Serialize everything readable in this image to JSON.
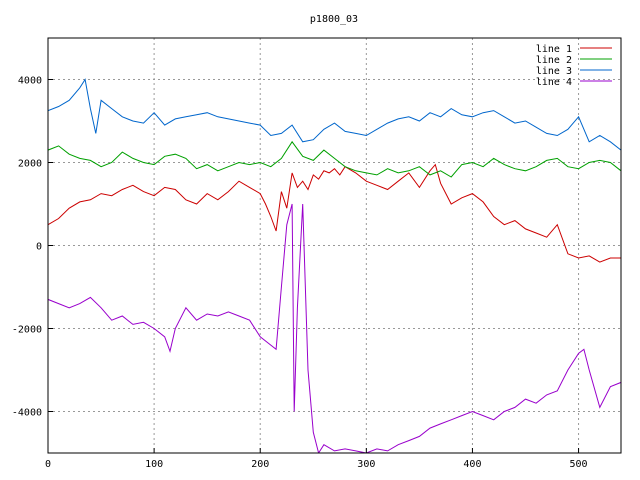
{
  "chart_data": {
    "type": "line",
    "title": "p1800_03",
    "xlabel": "",
    "ylabel": "",
    "xlim": [
      0,
      540
    ],
    "ylim": [
      -5000,
      5000
    ],
    "xticks": [
      0,
      100,
      200,
      300,
      400,
      500
    ],
    "yticks": [
      -4000,
      -2000,
      0,
      2000,
      4000
    ],
    "grid": true,
    "legend_position": "top-right",
    "series": [
      {
        "name": "line 1",
        "color": "#cc0000",
        "x": [
          0,
          10,
          20,
          30,
          40,
          50,
          60,
          70,
          80,
          90,
          100,
          110,
          120,
          130,
          140,
          150,
          160,
          170,
          180,
          190,
          200,
          205,
          210,
          215,
          220,
          225,
          230,
          235,
          240,
          245,
          250,
          255,
          260,
          265,
          270,
          275,
          280,
          290,
          300,
          310,
          320,
          330,
          340,
          350,
          360,
          365,
          370,
          380,
          390,
          400,
          410,
          420,
          430,
          440,
          450,
          460,
          470,
          480,
          490,
          500,
          510,
          520,
          530,
          540
        ],
        "y": [
          500,
          650,
          900,
          1050,
          1100,
          1250,
          1200,
          1350,
          1450,
          1300,
          1200,
          1400,
          1350,
          1100,
          1000,
          1250,
          1100,
          1300,
          1550,
          1400,
          1250,
          1000,
          700,
          350,
          1300,
          900,
          1750,
          1400,
          1550,
          1350,
          1700,
          1600,
          1800,
          1750,
          1850,
          1700,
          1900,
          1750,
          1550,
          1450,
          1350,
          1550,
          1750,
          1400,
          1800,
          1950,
          1500,
          1000,
          1150,
          1250,
          1050,
          700,
          500,
          600,
          400,
          300,
          200,
          500,
          -200,
          -300,
          -250,
          -400,
          -300,
          -300
        ]
      },
      {
        "name": "line 2",
        "color": "#00a000",
        "x": [
          0,
          10,
          20,
          30,
          40,
          50,
          60,
          70,
          80,
          90,
          100,
          110,
          120,
          130,
          140,
          150,
          160,
          170,
          180,
          190,
          200,
          210,
          220,
          230,
          240,
          250,
          260,
          270,
          280,
          290,
          300,
          310,
          320,
          330,
          340,
          350,
          360,
          370,
          380,
          390,
          400,
          410,
          420,
          430,
          440,
          450,
          460,
          470,
          480,
          490,
          500,
          510,
          520,
          530,
          540
        ],
        "y": [
          2300,
          2400,
          2200,
          2100,
          2050,
          1900,
          2000,
          2250,
          2100,
          2000,
          1950,
          2150,
          2200,
          2100,
          1850,
          1950,
          1800,
          1900,
          2000,
          1950,
          2000,
          1900,
          2100,
          2500,
          2150,
          2050,
          2300,
          2100,
          1900,
          1800,
          1750,
          1700,
          1850,
          1750,
          1800,
          1900,
          1700,
          1800,
          1650,
          1950,
          2000,
          1900,
          2100,
          1950,
          1850,
          1800,
          1900,
          2050,
          2100,
          1900,
          1850,
          2000,
          2050,
          2000,
          1800
        ]
      },
      {
        "name": "line 3",
        "color": "#0066cc",
        "x": [
          0,
          10,
          20,
          30,
          35,
          40,
          45,
          50,
          60,
          70,
          80,
          90,
          100,
          110,
          120,
          130,
          140,
          150,
          160,
          170,
          180,
          190,
          200,
          210,
          220,
          230,
          240,
          250,
          260,
          270,
          280,
          290,
          300,
          310,
          320,
          330,
          340,
          350,
          360,
          370,
          380,
          390,
          400,
          410,
          420,
          430,
          440,
          450,
          460,
          470,
          480,
          490,
          500,
          510,
          520,
          530,
          540
        ],
        "y": [
          3250,
          3350,
          3500,
          3800,
          4000,
          3300,
          2700,
          3500,
          3300,
          3100,
          3000,
          2950,
          3200,
          2900,
          3050,
          3100,
          3150,
          3200,
          3100,
          3050,
          3000,
          2950,
          2900,
          2650,
          2700,
          2900,
          2500,
          2550,
          2800,
          2950,
          2750,
          2700,
          2650,
          2800,
          2950,
          3050,
          3100,
          3000,
          3200,
          3100,
          3300,
          3150,
          3100,
          3200,
          3250,
          3100,
          2950,
          3000,
          2850,
          2700,
          2650,
          2800,
          3100,
          2500,
          2650,
          2500,
          2300
        ]
      },
      {
        "name": "line 4",
        "color": "#9900cc",
        "x": [
          0,
          10,
          20,
          30,
          40,
          50,
          60,
          70,
          80,
          90,
          100,
          110,
          115,
          120,
          130,
          140,
          150,
          160,
          170,
          180,
          190,
          200,
          210,
          215,
          220,
          225,
          230,
          232,
          235,
          240,
          245,
          250,
          255,
          260,
          270,
          280,
          290,
          300,
          310,
          320,
          330,
          340,
          350,
          360,
          370,
          380,
          390,
          400,
          410,
          420,
          430,
          440,
          450,
          460,
          470,
          480,
          490,
          500,
          505,
          510,
          520,
          530,
          540
        ],
        "y": [
          -1300,
          -1400,
          -1500,
          -1400,
          -1250,
          -1500,
          -1800,
          -1700,
          -1900,
          -1850,
          -2000,
          -2200,
          -2550,
          -2000,
          -1500,
          -1800,
          -1650,
          -1700,
          -1600,
          -1700,
          -1800,
          -2200,
          -2400,
          -2500,
          -1000,
          500,
          1000,
          -4000,
          -1500,
          1000,
          -3000,
          -4500,
          -5000,
          -4800,
          -4950,
          -4900,
          -4950,
          -5000,
          -4900,
          -4950,
          -4800,
          -4700,
          -4600,
          -4400,
          -4300,
          -4200,
          -4100,
          -4000,
          -4100,
          -4200,
          -4000,
          -3900,
          -3700,
          -3800,
          -3600,
          -3500,
          -3000,
          -2600,
          -2500,
          -3000,
          -3900,
          -3400,
          -3300
        ]
      }
    ]
  }
}
